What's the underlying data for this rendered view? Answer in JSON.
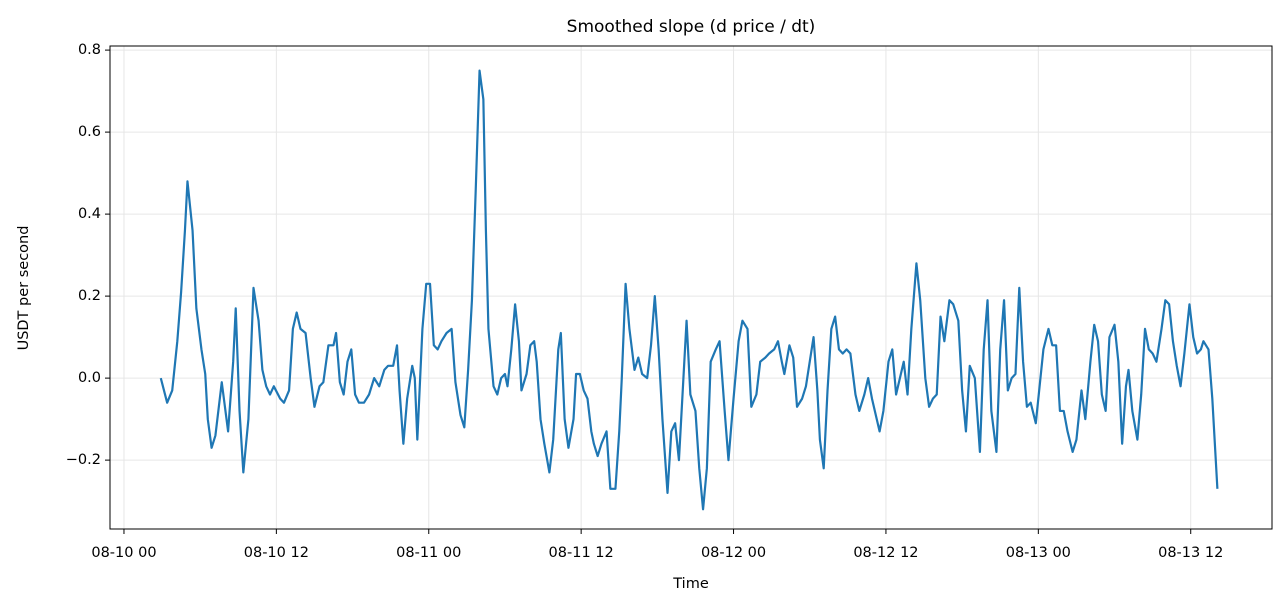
{
  "chart_data": {
    "type": "line",
    "title": "Smoothed slope (d price / dt)",
    "x_label": "Time",
    "y_label": "USDT per second",
    "color": "#1f77b4",
    "grid": true,
    "xlim": [
      -1.1,
      90.4
    ],
    "ylim": [
      -0.368,
      0.81
    ],
    "xticks": [
      {
        "value": 0,
        "label": "08-10 00"
      },
      {
        "value": 12,
        "label": "08-10 12"
      },
      {
        "value": 24,
        "label": "08-11 00"
      },
      {
        "value": 36,
        "label": "08-11 12"
      },
      {
        "value": 48,
        "label": "08-12 00"
      },
      {
        "value": 60,
        "label": "08-12 12"
      },
      {
        "value": 72,
        "label": "08-13 00"
      },
      {
        "value": 84,
        "label": "08-13 12"
      }
    ],
    "yticks": [
      {
        "value": -0.2,
        "label": "−0.2"
      },
      {
        "value": 0,
        "label": "0.0"
      },
      0.2,
      0.4,
      0.6,
      0.8
    ],
    "x": [
      2.9,
      3.4,
      3.8,
      4.2,
      4.5,
      4.8,
      5.0,
      5.4,
      5.7,
      6.1,
      6.4,
      6.6,
      6.9,
      7.2,
      7.7,
      8.2,
      8.6,
      8.8,
      9.1,
      9.4,
      9.8,
      10.2,
      10.6,
      10.9,
      11.2,
      11.5,
      11.8,
      12.3,
      12.6,
      13.0,
      13.3,
      13.6,
      13.9,
      14.3,
      14.7,
      15.0,
      15.4,
      15.7,
      16.1,
      16.5,
      16.7,
      17.0,
      17.3,
      17.6,
      17.9,
      18.2,
      18.5,
      18.9,
      19.3,
      19.7,
      20.1,
      20.5,
      20.8,
      21.2,
      21.5,
      21.7,
      22.0,
      22.3,
      22.7,
      22.9,
      23.1,
      23.5,
      23.8,
      24.1,
      24.4,
      24.7,
      25.0,
      25.4,
      25.8,
      26.1,
      26.5,
      26.8,
      27.1,
      27.4,
      27.7,
      28.0,
      28.3,
      28.5,
      28.7,
      29.1,
      29.4,
      29.7,
      30.0,
      30.2,
      30.5,
      30.8,
      31.1,
      31.3,
      31.7,
      32.0,
      32.3,
      32.5,
      32.8,
      33.1,
      33.5,
      33.8,
      34.2,
      34.4,
      34.7,
      35.0,
      35.4,
      35.6,
      35.9,
      36.2,
      36.5,
      36.8,
      37.0,
      37.3,
      37.6,
      38.0,
      38.3,
      38.7,
      39.0,
      39.2,
      39.5,
      39.8,
      40.2,
      40.5,
      40.8,
      41.2,
      41.5,
      41.8,
      42.1,
      42.4,
      42.8,
      43.1,
      43.4,
      43.7,
      44.0,
      44.3,
      44.6,
      45.0,
      45.3,
      45.6,
      45.9,
      46.2,
      46.6,
      46.9,
      47.3,
      47.6,
      48.0,
      48.4,
      48.7,
      49.1,
      49.4,
      49.8,
      50.1,
      50.5,
      50.8,
      51.2,
      51.5,
      51.8,
      52.0,
      52.4,
      52.7,
      53.0,
      53.4,
      53.7,
      54.0,
      54.3,
      54.6,
      54.8,
      55.1,
      55.4,
      55.7,
      56.0,
      56.3,
      56.6,
      56.9,
      57.2,
      57.6,
      57.9,
      58.3,
      58.6,
      58.9,
      59.2,
      59.5,
      59.8,
      60.2,
      60.5,
      60.8,
      61.1,
      61.4,
      61.7,
      62.0,
      62.4,
      62.7,
      63.1,
      63.4,
      63.7,
      64.0,
      64.3,
      64.6,
      65.0,
      65.3,
      65.7,
      66.0,
      66.3,
      66.6,
      67.0,
      67.4,
      67.7,
      68.0,
      68.3,
      68.7,
      69.0,
      69.3,
      69.6,
      69.9,
      70.2,
      70.5,
      70.8,
      71.1,
      71.4,
      71.8,
      72.1,
      72.4,
      72.8,
      73.1,
      73.4,
      73.7,
      74.0,
      74.3,
      74.7,
      75.0,
      75.4,
      75.7,
      76.1,
      76.4,
      76.7,
      77.0,
      77.3,
      77.6,
      78.0,
      78.3,
      78.6,
      78.9,
      79.1,
      79.4,
      79.8,
      80.1,
      80.4,
      80.7,
      81.0,
      81.3,
      81.7,
      82.0,
      82.3,
      82.6,
      82.9,
      83.2,
      83.5,
      83.9,
      84.2,
      84.5,
      84.8,
      85.0,
      85.4,
      85.7,
      86.1
    ],
    "values": [
      0.0,
      -0.06,
      -0.03,
      0.09,
      0.21,
      0.36,
      0.48,
      0.36,
      0.17,
      0.07,
      0.01,
      -0.1,
      -0.17,
      -0.14,
      -0.01,
      -0.13,
      0.04,
      0.17,
      -0.08,
      -0.23,
      -0.1,
      0.22,
      0.14,
      0.02,
      -0.02,
      -0.04,
      -0.02,
      -0.05,
      -0.06,
      -0.03,
      0.12,
      0.16,
      0.12,
      0.11,
      0.0,
      -0.07,
      -0.02,
      -0.01,
      0.08,
      0.08,
      0.11,
      -0.01,
      -0.04,
      0.04,
      0.07,
      -0.04,
      -0.06,
      -0.06,
      -0.04,
      0.0,
      -0.02,
      0.02,
      0.03,
      0.03,
      0.08,
      -0.03,
      -0.16,
      -0.05,
      0.03,
      0.0,
      -0.15,
      0.12,
      0.23,
      0.23,
      0.08,
      0.07,
      0.09,
      0.11,
      0.12,
      -0.01,
      -0.09,
      -0.12,
      0.02,
      0.19,
      0.46,
      0.75,
      0.68,
      0.36,
      0.12,
      -0.02,
      -0.04,
      0.0,
      0.01,
      -0.02,
      0.07,
      0.18,
      0.09,
      -0.03,
      0.01,
      0.08,
      0.09,
      0.04,
      -0.1,
      -0.16,
      -0.23,
      -0.15,
      0.07,
      0.11,
      -0.1,
      -0.17,
      -0.1,
      0.01,
      0.01,
      -0.03,
      -0.05,
      -0.13,
      -0.16,
      -0.19,
      -0.16,
      -0.13,
      -0.27,
      -0.27,
      -0.13,
      0.0,
      0.23,
      0.12,
      0.02,
      0.05,
      0.01,
      0.0,
      0.08,
      0.2,
      0.07,
      -0.1,
      -0.28,
      -0.13,
      -0.11,
      -0.2,
      -0.03,
      0.14,
      -0.04,
      -0.08,
      -0.22,
      -0.32,
      -0.22,
      0.04,
      0.07,
      0.09,
      -0.08,
      -0.2,
      -0.05,
      0.09,
      0.14,
      0.12,
      -0.07,
      -0.04,
      0.04,
      0.05,
      0.06,
      0.07,
      0.09,
      0.04,
      0.01,
      0.08,
      0.05,
      -0.07,
      -0.05,
      -0.02,
      0.04,
      0.1,
      -0.03,
      -0.15,
      -0.22,
      -0.03,
      0.12,
      0.15,
      0.07,
      0.06,
      0.07,
      0.06,
      -0.04,
      -0.08,
      -0.04,
      0.0,
      -0.05,
      -0.09,
      -0.13,
      -0.08,
      0.04,
      0.07,
      -0.04,
      0.0,
      0.04,
      -0.04,
      0.12,
      0.28,
      0.19,
      0.0,
      -0.07,
      -0.05,
      -0.04,
      0.15,
      0.09,
      0.19,
      0.18,
      0.14,
      -0.03,
      -0.13,
      0.03,
      0.0,
      -0.18,
      0.07,
      0.19,
      -0.08,
      -0.18,
      0.07,
      0.19,
      -0.03,
      0.0,
      0.01,
      0.22,
      0.04,
      -0.07,
      -0.06,
      -0.11,
      -0.02,
      0.07,
      0.12,
      0.08,
      0.08,
      -0.08,
      -0.08,
      -0.13,
      -0.18,
      -0.15,
      -0.03,
      -0.1,
      0.04,
      0.13,
      0.09,
      -0.04,
      -0.08,
      0.1,
      0.13,
      0.04,
      -0.16,
      -0.02,
      0.02,
      -0.08,
      -0.15,
      -0.04,
      0.12,
      0.07,
      0.06,
      0.04,
      0.12,
      0.19,
      0.18,
      0.09,
      0.03,
      -0.02,
      0.06,
      0.18,
      0.1,
      0.06,
      0.07,
      0.09,
      0.07,
      -0.05,
      -0.27
    ]
  }
}
